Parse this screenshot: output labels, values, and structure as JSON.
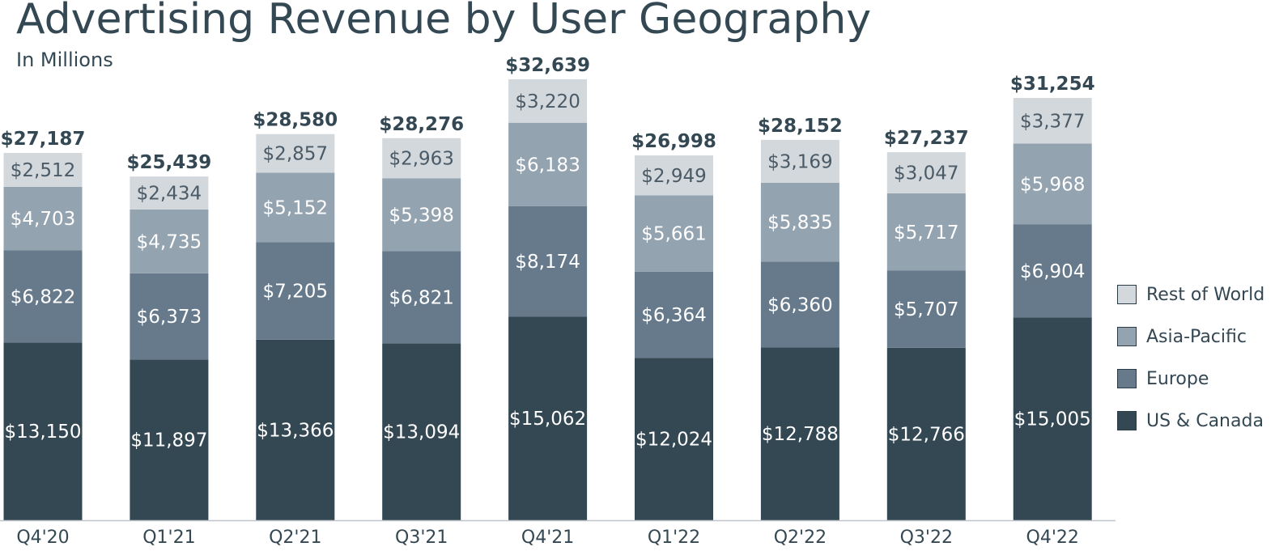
{
  "header": {
    "title": "Advertising Revenue by User Geography",
    "subtitle": "In Millions"
  },
  "colors": {
    "us_canada": "#344854",
    "europe": "#677a8b",
    "asia_pacific": "#94a3b0",
    "rest_of_world": "#d3d8dc",
    "axis": "#bfc5ca",
    "text_dark": "#344854",
    "text_light": "#ffffff",
    "text_row": "#4a5a66"
  },
  "chart_data": {
    "type": "bar",
    "stacked": true,
    "title": "Advertising Revenue by User Geography",
    "subtitle": "In Millions",
    "xlabel": "",
    "ylabel": "",
    "categories": [
      "Q4'20",
      "Q1'21",
      "Q2'21",
      "Q3'21",
      "Q4'21",
      "Q1'22",
      "Q2'22",
      "Q3'22",
      "Q4'22"
    ],
    "series": [
      {
        "name": "US & Canada",
        "key": "us_canada",
        "values": [
          13150,
          11897,
          13366,
          13094,
          15062,
          12024,
          12788,
          12766,
          15005
        ],
        "labels": [
          "$13,150",
          "$11,897",
          "$13,366",
          "$13,094",
          "$15,062",
          "$12,024",
          "$12,788",
          "$12,766",
          "$15,005"
        ]
      },
      {
        "name": "Europe",
        "key": "europe",
        "values": [
          6822,
          6373,
          7205,
          6821,
          8174,
          6364,
          6360,
          5707,
          6904
        ],
        "labels": [
          "$6,822",
          "$6,373",
          "$7,205",
          "$6,821",
          "$8,174",
          "$6,364",
          "$6,360",
          "$5,707",
          "$6,904"
        ]
      },
      {
        "name": "Asia-Pacific",
        "key": "asia_pacific",
        "values": [
          4703,
          4735,
          5152,
          5398,
          6183,
          5661,
          5835,
          5717,
          5968
        ],
        "labels": [
          "$4,703",
          "$4,735",
          "$5,152",
          "$5,398",
          "$6,183",
          "$5,661",
          "$5,835",
          "$5,717",
          "$5,968"
        ]
      },
      {
        "name": "Rest of World",
        "key": "rest_of_world",
        "values": [
          2512,
          2434,
          2857,
          2963,
          3220,
          2949,
          3169,
          3047,
          3377
        ],
        "labels": [
          "$2,512",
          "$2,434",
          "$2,857",
          "$2,963",
          "$3,220",
          "$2,949",
          "$3,169",
          "$3,047",
          "$3,377"
        ]
      }
    ],
    "totals": [
      27187,
      25439,
      28580,
      28276,
      32639,
      26998,
      28152,
      27237,
      31254
    ],
    "total_labels": [
      "$27,187",
      "$25,439",
      "$28,580",
      "$28,276",
      "$32,639",
      "$26,998",
      "$28,152",
      "$27,237",
      "$31,254"
    ],
    "ylim": [
      0,
      36000
    ],
    "grid": false,
    "legend": {
      "position": "right",
      "order": [
        "Rest of World",
        "Asia-Pacific",
        "Europe",
        "US & Canada"
      ]
    }
  }
}
